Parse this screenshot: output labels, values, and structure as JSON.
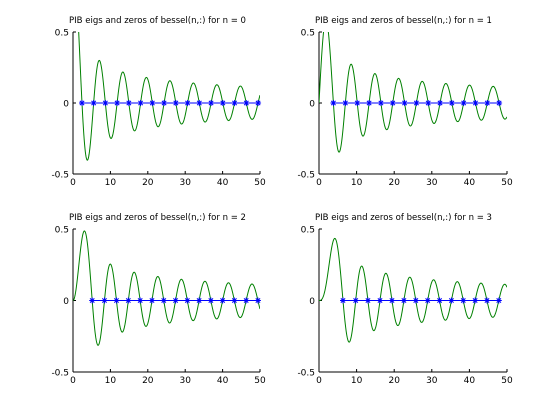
{
  "figure_colors": {
    "background": "#ffffff",
    "axes": "#000000",
    "curve": "#008000",
    "marker": "#0000ff"
  },
  "chart_data": [
    {
      "type": "line",
      "title": "PIB eigs and zeros of bessel(n,:) for n = 0",
      "order": 0,
      "xlim": [
        0,
        50
      ],
      "ylim": [
        -0.5,
        0.5
      ],
      "xticks": [
        0,
        10,
        20,
        30,
        40,
        50
      ],
      "yticks": [
        -0.5,
        0,
        0.5
      ],
      "grid": false,
      "series": [
        {
          "kind": "line",
          "function": "besselj(0, x)",
          "color": "#008000"
        },
        {
          "kind": "markers",
          "marker": "*",
          "color": "#0000ff",
          "y": 0,
          "x": [
            2.405,
            5.52,
            8.654,
            11.792,
            14.931,
            18.071,
            21.212,
            24.352,
            27.493,
            30.635,
            33.776,
            36.917,
            40.058,
            43.2,
            46.341,
            49.483
          ]
        }
      ]
    },
    {
      "type": "line",
      "title": "PIB eigs and zeros of bessel(n,:) for n = 1",
      "order": 1,
      "xlim": [
        0,
        50
      ],
      "ylim": [
        -0.5,
        0.5
      ],
      "xticks": [
        0,
        10,
        20,
        30,
        40,
        50
      ],
      "yticks": [
        -0.5,
        0,
        0.5
      ],
      "grid": false,
      "series": [
        {
          "kind": "line",
          "function": "besselj(1, x)",
          "color": "#008000"
        },
        {
          "kind": "markers",
          "marker": "*",
          "color": "#0000ff",
          "y": 0,
          "x": [
            3.832,
            7.016,
            10.173,
            13.324,
            16.471,
            19.616,
            22.76,
            25.904,
            29.047,
            32.19,
            35.332,
            38.475,
            41.617,
            44.759,
            47.901
          ]
        }
      ]
    },
    {
      "type": "line",
      "title": "PIB eigs and zeros of bessel(n,:) for n = 2",
      "order": 2,
      "xlim": [
        0,
        50
      ],
      "ylim": [
        -0.5,
        0.5
      ],
      "xticks": [
        0,
        10,
        20,
        30,
        40,
        50
      ],
      "yticks": [
        -0.5,
        0,
        0.5
      ],
      "grid": false,
      "series": [
        {
          "kind": "line",
          "function": "besselj(2, x)",
          "color": "#008000"
        },
        {
          "kind": "markers",
          "marker": "*",
          "color": "#0000ff",
          "y": 0,
          "x": [
            5.136,
            8.417,
            11.62,
            14.796,
            17.96,
            21.117,
            24.27,
            27.421,
            30.569,
            33.717,
            36.863,
            40.008,
            43.153,
            46.298,
            49.442
          ]
        }
      ]
    },
    {
      "type": "line",
      "title": "PIB eigs and zeros of bessel(n,:) for n = 3",
      "order": 3,
      "xlim": [
        0,
        50
      ],
      "ylim": [
        -0.5,
        0.5
      ],
      "xticks": [
        0,
        10,
        20,
        30,
        40,
        50
      ],
      "yticks": [
        -0.5,
        0,
        0.5
      ],
      "grid": false,
      "series": [
        {
          "kind": "line",
          "function": "besselj(3, x)",
          "color": "#008000"
        },
        {
          "kind": "markers",
          "marker": "*",
          "color": "#0000ff",
          "y": 0,
          "x": [
            6.38,
            9.761,
            13.015,
            16.223,
            19.409,
            22.583,
            25.748,
            28.908,
            32.065,
            35.219,
            38.37,
            41.521,
            44.67,
            47.818
          ]
        }
      ]
    }
  ]
}
